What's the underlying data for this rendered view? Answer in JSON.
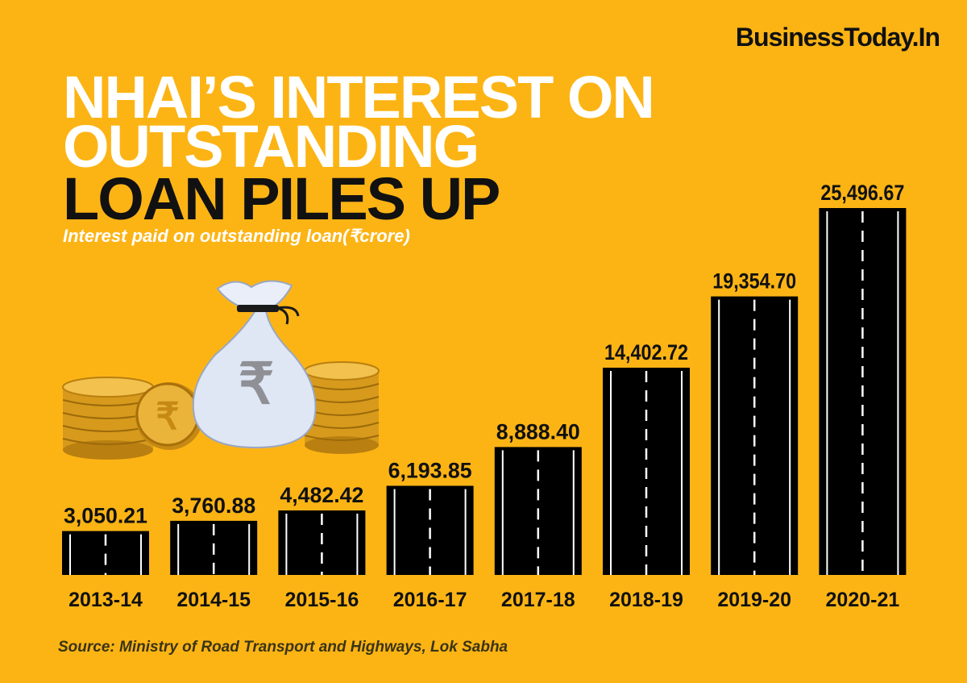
{
  "brand": "BusinessToday.In",
  "title_lines": [
    "NHAI’S INTEREST ON",
    "OUTSTANDING",
    "LOAN PILES UP"
  ],
  "subtitle": "Interest paid on outstanding loan(₹crore)",
  "source": "Source: Ministry of Road Transport and Highways, Lok Sabha",
  "chart_data": {
    "type": "bar",
    "title": "NHAI’S INTEREST ON OUTSTANDING LOAN PILES UP",
    "subtitle": "Interest paid on outstanding loan(₹crore)",
    "categories": [
      "2013-14",
      "2014-15",
      "2015-16",
      "2016-17",
      "2017-18",
      "2018-19",
      "2019-20",
      "2020-21"
    ],
    "values": [
      3050.21,
      3760.88,
      4482.42,
      6193.85,
      8888.4,
      14402.72,
      19354.7,
      25496.67
    ],
    "value_labels": [
      "3,050.21",
      "3,760.88",
      "4,482.42",
      "6,193.85",
      "8,888.40",
      "14,402.72",
      "19,354.70",
      "25,496.67"
    ],
    "xlabel": "",
    "ylabel": "",
    "grid": false,
    "legend": "none",
    "colors": {
      "background": "#fcb415",
      "bar": "#000000",
      "lane": "#ffffff",
      "title_white": "#ffffff",
      "title_dark": "#111111"
    }
  },
  "illustration": {
    "icons": [
      "money-bag-icon",
      "rupee-coin-icon",
      "coin-stack-icon"
    ],
    "symbol": "₹"
  }
}
